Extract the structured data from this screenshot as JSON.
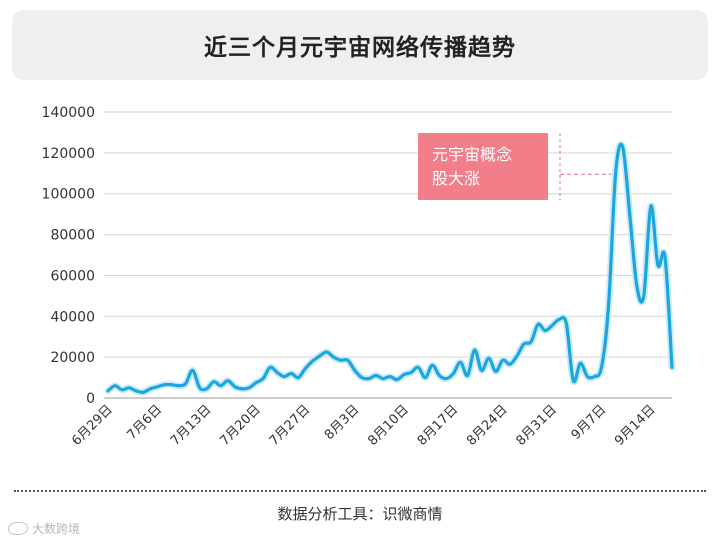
{
  "header": {
    "title": "近三个月元宇宙网络传播趋势"
  },
  "footer": {
    "source": "数据分析工具：识微商情"
  },
  "watermark": {
    "text": "大数跨境"
  },
  "colors": {
    "line": "#1aa7df",
    "annotation_box": "#f27e8a",
    "grid": "#d6d6d6"
  },
  "chart_data": {
    "type": "line",
    "title": "近三个月元宇宙网络传播趋势",
    "xlabel": "",
    "ylabel": "",
    "ylim": [
      0,
      140000
    ],
    "yticks": [
      0,
      20000,
      40000,
      60000,
      80000,
      100000,
      120000,
      140000
    ],
    "xtick_labels": [
      "6月29日",
      "7月6日",
      "7月13日",
      "7月20日",
      "7月27日",
      "8月3日",
      "8月10日",
      "8月17日",
      "8月24日",
      "8月31日",
      "9月7日",
      "9月14日"
    ],
    "grid": true,
    "legend": "none",
    "annotation": {
      "lines": [
        "元宇宙概念",
        "股大涨"
      ],
      "target_date": "9月9日"
    },
    "series": [
      {
        "x": [
          "6月29日",
          "6月30日",
          "7月1日",
          "7月2日",
          "7月3日",
          "7月4日",
          "7月5日",
          "7月6日",
          "7月7日",
          "7月8日",
          "7月9日",
          "7月10日",
          "7月11日",
          "7月12日",
          "7月13日",
          "7月14日",
          "7月15日",
          "7月16日",
          "7月17日",
          "7月18日",
          "7月19日",
          "7月20日",
          "7月21日",
          "7月22日",
          "7月23日",
          "7月24日",
          "7月25日",
          "7月26日",
          "7月27日",
          "7月28日",
          "7月29日",
          "7月30日",
          "7月31日",
          "8月1日",
          "8月2日",
          "8月3日",
          "8月4日",
          "8月5日",
          "8月6日",
          "8月7日",
          "8月8日",
          "8月9日",
          "8月10日",
          "8月11日",
          "8月12日",
          "8月13日",
          "8月14日",
          "8月15日",
          "8月16日",
          "8月17日",
          "8月18日",
          "8月19日",
          "8月20日",
          "8月21日",
          "8月22日",
          "8月23日",
          "8月24日",
          "8月25日",
          "8月26日",
          "8月27日",
          "8月28日",
          "8月29日",
          "8月30日",
          "8月31日",
          "9月1日",
          "9月2日",
          "9月3日",
          "9月4日",
          "9月5日",
          "9月6日",
          "9月7日",
          "9月8日",
          "9月9日",
          "9月10日",
          "9月11日",
          "9月12日",
          "9月13日",
          "9月14日",
          "9月15日",
          "9月16日",
          "9月17日"
        ],
        "values": [
          3500,
          6000,
          4000,
          5000,
          3500,
          2800,
          4500,
          5500,
          6500,
          6500,
          6000,
          7000,
          13500,
          5000,
          4500,
          8000,
          6000,
          8500,
          5500,
          4500,
          5000,
          7500,
          9500,
          15000,
          12500,
          10500,
          12000,
          10000,
          14500,
          18000,
          20500,
          22500,
          20000,
          18500,
          18500,
          13500,
          10000,
          9500,
          11000,
          9500,
          10500,
          9000,
          11500,
          12500,
          15000,
          10000,
          16000,
          11000,
          9500,
          12000,
          17500,
          11000,
          23500,
          13500,
          19500,
          13000,
          18500,
          16500,
          20500,
          26500,
          27500,
          36000,
          33000,
          35500,
          38500,
          36500,
          8500,
          17000,
          10500,
          10500,
          15000,
          45000,
          110000,
          123000,
          90000,
          55000,
          50000,
          94000,
          65000,
          69000,
          15000
        ]
      }
    ]
  }
}
